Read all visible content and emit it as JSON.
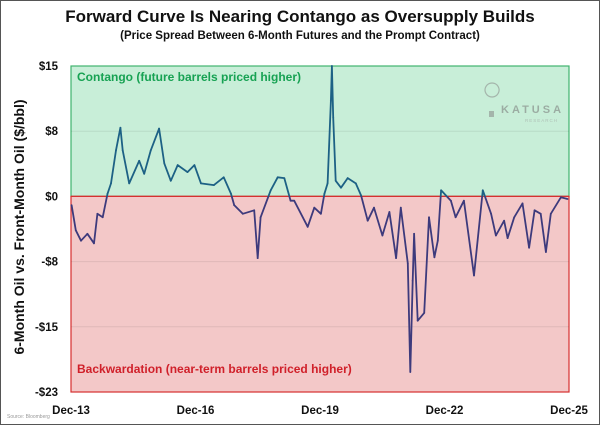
{
  "chart_data": {
    "type": "line",
    "title": "Forward Curve Is Nearing Contango as Oversupply Builds",
    "subtitle": "(Price Spread Between 6-Month Futures and the Prompt Contract)",
    "xlabel": "",
    "ylabel": "6-Month Oil vs. Front-Month Oil ($/bbl)",
    "xlim": [
      "2013-12-01",
      "2025-12-01"
    ],
    "ylim": [
      -22.5,
      15
    ],
    "x_ticks": [
      "Dec-13",
      "Dec-16",
      "Dec-19",
      "Dec-22",
      "Dec-25"
    ],
    "y_ticks": [
      {
        "value": 15,
        "label": "$15"
      },
      {
        "value": 7.5,
        "label": "$8"
      },
      {
        "value": 0,
        "label": "$0"
      },
      {
        "value": -7.5,
        "label": "-$8"
      },
      {
        "value": -15,
        "label": "-$15"
      },
      {
        "value": -22.5,
        "label": "-$23"
      }
    ],
    "grid": true,
    "regions": [
      {
        "label": "Contango (future barrels priced higher)",
        "from": 0,
        "to": 15,
        "fill": "#c8eed8",
        "border": "#3fb36e",
        "text_color": "#17a253"
      },
      {
        "label": "Backwardation (near-term barrels priced higher)",
        "from": -22.5,
        "to": 0,
        "fill": "#f3c8c8",
        "border": "#d63030",
        "text_color": "#d0202a"
      }
    ],
    "line_colors": {
      "above_zero": "#1d6185",
      "below_zero": "#3d3a7c"
    },
    "x": [
      "2013-12-06",
      "2014-01-12",
      "2014-02-27",
      "2014-04-24",
      "2014-06-21",
      "2014-07-21",
      "2014-09-06",
      "2014-10-18",
      "2014-11-18",
      "2015-01-01",
      "2015-02-09",
      "2015-03-01",
      "2015-04-27",
      "2015-07-24",
      "2015-09-06",
      "2015-11-03",
      "2016-01-15",
      "2016-03-01",
      "2016-04-27",
      "2016-06-27",
      "2016-09-21",
      "2016-11-21",
      "2017-01-18",
      "2017-05-12",
      "2017-08-06",
      "2017-10-09",
      "2017-11-06",
      "2018-01-21",
      "2018-05-01",
      "2018-06-01",
      "2018-06-27",
      "2018-09-24",
      "2018-11-24",
      "2019-01-21",
      "2019-03-18",
      "2019-04-18",
      "2019-08-15",
      "2019-10-12",
      "2019-12-09",
      "2020-01-09",
      "2020-02-06",
      "2020-03-06",
      "2020-03-15",
      "2020-03-27",
      "2020-04-18",
      "2020-06-03",
      "2020-08-01",
      "2020-10-12",
      "2020-11-27",
      "2021-01-24",
      "2021-03-21",
      "2021-06-03",
      "2021-08-03",
      "2021-10-01",
      "2021-11-12",
      "2022-01-12",
      "2022-02-03",
      "2022-02-24",
      "2022-03-09",
      "2022-04-09",
      "2022-06-06",
      "2022-07-18",
      "2022-09-03",
      "2022-10-03",
      "2022-11-01",
      "2023-01-27",
      "2023-03-09",
      "2023-05-21",
      "2023-08-18",
      "2023-11-03",
      "2024-01-15",
      "2024-02-27",
      "2024-05-09",
      "2024-06-09",
      "2024-08-06",
      "2024-10-18",
      "2024-12-15",
      "2025-02-01",
      "2025-03-27",
      "2025-05-12",
      "2025-06-24",
      "2025-09-21",
      "2025-11-18"
    ],
    "series": [
      {
        "values": [
          -1.0,
          -3.9,
          -5.1,
          -4.3,
          -5.4,
          -2.0,
          -2.4,
          0.3,
          1.5,
          5.3,
          7.9,
          5.3,
          1.5,
          4.1,
          2.6,
          5.3,
          7.8,
          3.8,
          1.8,
          3.6,
          2.8,
          3.6,
          1.5,
          1.3,
          2.2,
          0.3,
          -1.0,
          -2.0,
          -1.6,
          -7.1,
          -2.4,
          0.7,
          2.2,
          2.1,
          -0.5,
          -0.5,
          -3.5,
          -1.3,
          -2.0,
          0.3,
          1.5,
          11.0,
          15.0,
          9.1,
          1.8,
          1.0,
          2.1,
          1.5,
          0.1,
          -2.8,
          -1.3,
          -4.5,
          -1.8,
          -7.1,
          -1.3,
          -7.7,
          -20.2,
          -9.7,
          -4.3,
          -14.3,
          -13.4,
          -2.4,
          -7.0,
          -5.1,
          0.7,
          -0.5,
          -2.4,
          -0.5,
          -9.1,
          0.7,
          -2.0,
          -4.5,
          -2.8,
          -4.8,
          -2.4,
          -0.8,
          -5.9,
          -1.6,
          -2.0,
          -6.4,
          -2.0,
          -0.1,
          -0.3
        ]
      }
    ]
  },
  "logo": {
    "name": "KATUSA",
    "sub": "RESEARCH",
    "icon": "lightbulb-icon"
  },
  "source": "Source: Bloomberg"
}
